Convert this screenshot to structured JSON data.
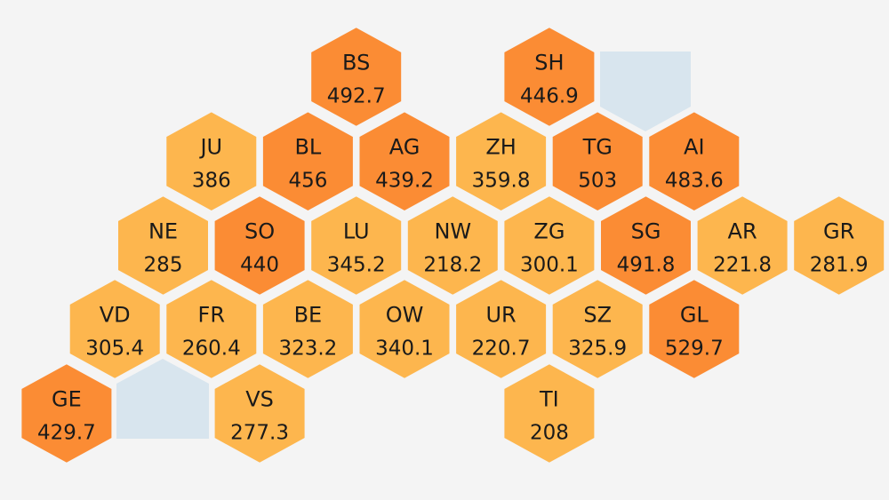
{
  "colors": {
    "background": "#f4f4f4",
    "high": "#fb8c34",
    "low": "#fdb64e",
    "neighbor": "#d8e5ee",
    "border": "#f4f4f4",
    "text": "#1a1a1a"
  },
  "cantons": [
    {
      "code": "BS",
      "value": "492.7",
      "level": "high",
      "col": 7,
      "row": 0
    },
    {
      "code": "SH",
      "value": "446.9",
      "level": "high",
      "col": 11,
      "row": 0
    },
    {
      "code": "JU",
      "value": "386",
      "level": "low",
      "col": 4,
      "row": 1
    },
    {
      "code": "BL",
      "value": "456",
      "level": "high",
      "col": 6,
      "row": 1
    },
    {
      "code": "AG",
      "value": "439.2",
      "level": "high",
      "col": 8,
      "row": 1
    },
    {
      "code": "ZH",
      "value": "359.8",
      "level": "low",
      "col": 10,
      "row": 1
    },
    {
      "code": "TG",
      "value": "503",
      "level": "high",
      "col": 12,
      "row": 1
    },
    {
      "code": "AI",
      "value": "483.6",
      "level": "high",
      "col": 14,
      "row": 1
    },
    {
      "code": "NE",
      "value": "285",
      "level": "low",
      "col": 3,
      "row": 2
    },
    {
      "code": "SO",
      "value": "440",
      "level": "high",
      "col": 5,
      "row": 2
    },
    {
      "code": "LU",
      "value": "345.2",
      "level": "low",
      "col": 7,
      "row": 2
    },
    {
      "code": "NW",
      "value": "218.2",
      "level": "low",
      "col": 9,
      "row": 2
    },
    {
      "code": "ZG",
      "value": "300.1",
      "level": "low",
      "col": 11,
      "row": 2
    },
    {
      "code": "SG",
      "value": "491.8",
      "level": "high",
      "col": 13,
      "row": 2
    },
    {
      "code": "AR",
      "value": "221.8",
      "level": "low",
      "col": 15,
      "row": 2
    },
    {
      "code": "GR",
      "value": "281.9",
      "level": "low",
      "col": 17,
      "row": 2
    },
    {
      "code": "VD",
      "value": "305.4",
      "level": "low",
      "col": 2,
      "row": 3
    },
    {
      "code": "FR",
      "value": "260.4",
      "level": "low",
      "col": 4,
      "row": 3
    },
    {
      "code": "BE",
      "value": "323.2",
      "level": "low",
      "col": 6,
      "row": 3
    },
    {
      "code": "OW",
      "value": "340.1",
      "level": "low",
      "col": 8,
      "row": 3
    },
    {
      "code": "UR",
      "value": "220.7",
      "level": "low",
      "col": 10,
      "row": 3
    },
    {
      "code": "SZ",
      "value": "325.9",
      "level": "low",
      "col": 12,
      "row": 3
    },
    {
      "code": "GL",
      "value": "529.7",
      "level": "high",
      "col": 14,
      "row": 3
    },
    {
      "code": "GE",
      "value": "429.7",
      "level": "high",
      "col": 1,
      "row": 4
    },
    {
      "code": "VS",
      "value": "277.3",
      "level": "low",
      "col": 5,
      "row": 4
    },
    {
      "code": "TI",
      "value": "208",
      "level": "low",
      "col": 11,
      "row": 4
    }
  ],
  "neighbors": [
    {
      "name": "germany-area",
      "shape": "top-right"
    },
    {
      "name": "france-area",
      "shape": "bottom-left"
    }
  ]
}
